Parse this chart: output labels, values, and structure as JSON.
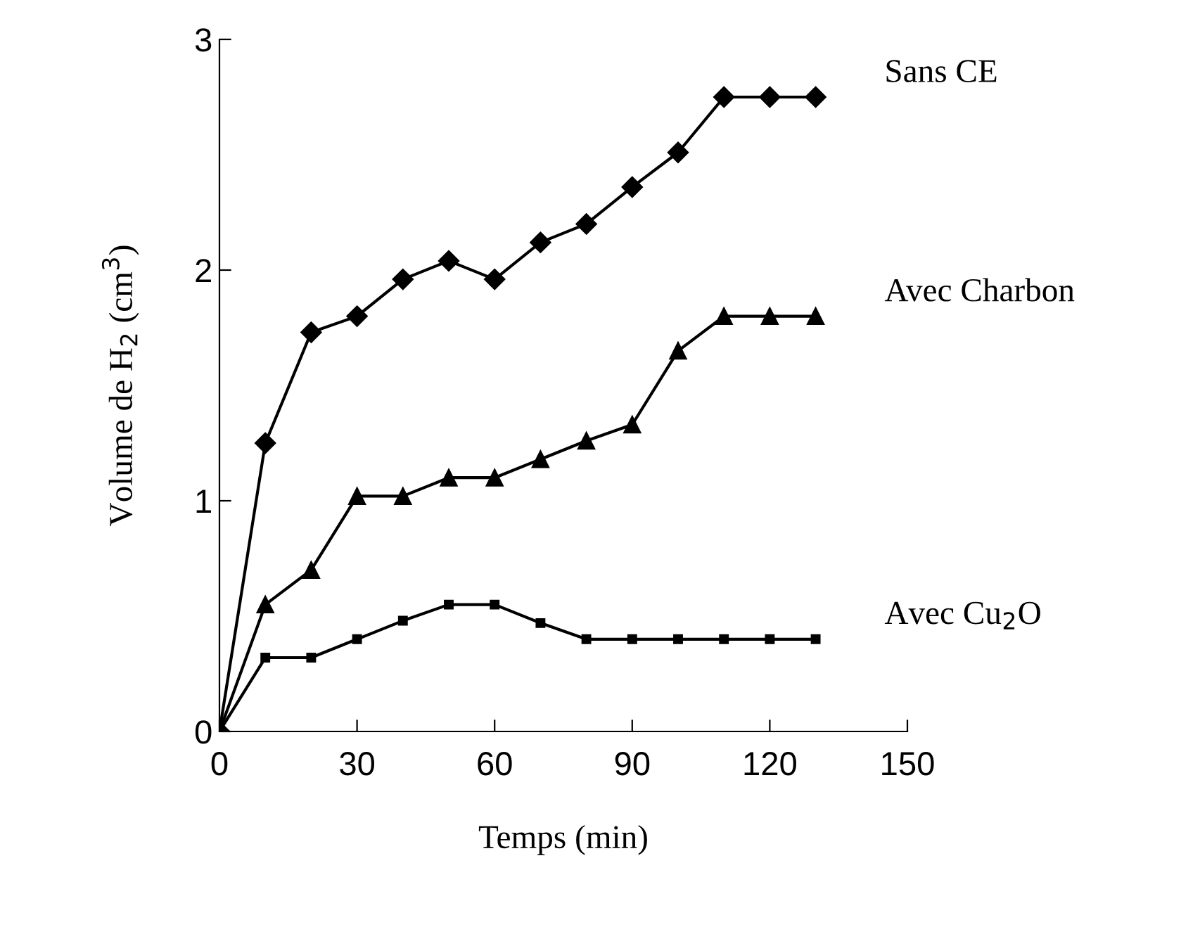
{
  "chart_data": {
    "type": "line",
    "xlabel": "Temps (min)",
    "ylabel": "Volume de H$_{2}$ (cm$^{3}$)",
    "x": [
      0,
      10,
      20,
      30,
      40,
      50,
      60,
      70,
      80,
      90,
      100,
      110,
      120,
      130
    ],
    "series": [
      {
        "name": "Sans CE",
        "color": "#000000",
        "marker": "diamond",
        "values": [
          0,
          1.25,
          1.73,
          1.8,
          1.96,
          2.04,
          1.96,
          2.12,
          2.2,
          2.36,
          2.51,
          2.75,
          2.75,
          2.75
        ]
      },
      {
        "name": "Avec Charbon",
        "color": "#000000",
        "marker": "triangle",
        "values": [
          0,
          0.55,
          0.7,
          1.02,
          1.02,
          1.1,
          1.1,
          1.18,
          1.26,
          1.33,
          1.65,
          1.8,
          1.8,
          1.8
        ]
      },
      {
        "name": "Avec Cu$_{2}$O",
        "color": "#000000",
        "marker": "square",
        "values": [
          0,
          0.32,
          0.32,
          0.4,
          0.48,
          0.55,
          0.55,
          0.47,
          0.4,
          0.4,
          0.4,
          0.4,
          0.4,
          0.4
        ]
      }
    ],
    "xlim": [
      0,
      150
    ],
    "xticks": [
      0,
      30,
      60,
      90,
      120,
      150
    ],
    "ylim": [
      0,
      3
    ],
    "yticks": [
      0,
      1,
      2,
      3
    ],
    "grid": false,
    "legend": false,
    "line_style": "solid"
  }
}
